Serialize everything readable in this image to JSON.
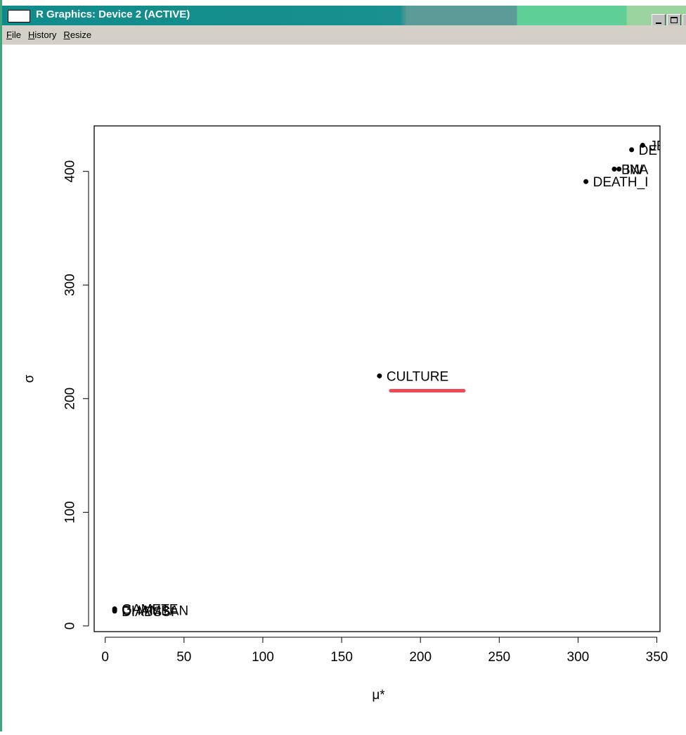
{
  "window": {
    "title": "R Graphics: Device 2 (ACTIVE)"
  },
  "menu": {
    "file": {
      "accel": "F",
      "rest": "ile"
    },
    "history": {
      "accel": "H",
      "rest": "istory"
    },
    "resize": {
      "accel": "R",
      "rest": "esize"
    }
  },
  "chart_data": {
    "type": "scatter",
    "xlabel": "μ*",
    "ylabel": "σ",
    "xlim": [
      -7,
      352
    ],
    "ylim": [
      -5,
      440
    ],
    "xticks": [
      0,
      50,
      100,
      150,
      200,
      250,
      300,
      350
    ],
    "yticks": [
      0,
      100,
      200,
      300,
      400
    ],
    "points": [
      {
        "x": 174,
        "y": 220,
        "label": "CULTURE"
      },
      {
        "x": 305,
        "y": 391,
        "label": "DEATH_I"
      },
      {
        "x": 323,
        "y": 402,
        "label": "BW"
      },
      {
        "x": 326,
        "y": 402,
        "label": "INA"
      },
      {
        "x": 334,
        "y": 419,
        "label": "DE"
      },
      {
        "x": 341,
        "y": 423,
        "label": "JE"
      },
      {
        "x": 6,
        "y": 15,
        "label": "GAMETE"
      },
      {
        "x": 6,
        "y": 14,
        "label": "CHAMBAN"
      },
      {
        "x": 6,
        "y": 13,
        "label": "DIABSSI"
      }
    ],
    "highlight_color": "#ee4a55"
  }
}
